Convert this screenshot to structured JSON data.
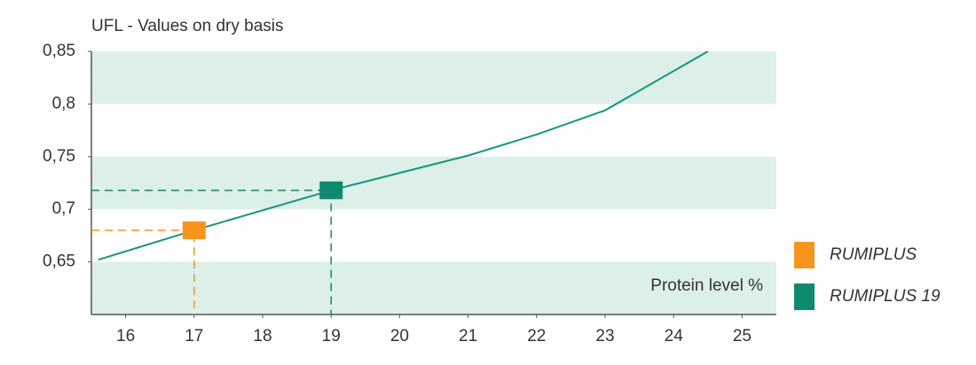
{
  "chart_data": {
    "type": "line",
    "title": "UFL - Values on dry basis",
    "annotation": "Protein level %",
    "x": [
      15.6,
      17,
      19,
      21,
      22,
      23,
      24.5
    ],
    "values": [
      0.652,
      0.68,
      0.718,
      0.751,
      0.771,
      0.794,
      0.85
    ],
    "color": "#17977b",
    "series": [
      {
        "name": "RUMIPLUS",
        "color": "#f7941d",
        "x": [
          17
        ],
        "values": [
          0.68
        ]
      },
      {
        "name": "RUMIPLUS 19",
        "color": "#0f8a6e",
        "x": [
          19
        ],
        "values": [
          0.718
        ]
      }
    ],
    "xlim": [
      15.5,
      25.5
    ],
    "xticks": [
      16,
      17,
      18,
      19,
      20,
      21,
      22,
      23,
      24,
      25
    ],
    "ylim": [
      0.6,
      0.85
    ],
    "yticks": [
      {
        "value": 0.65,
        "label": "0,65"
      },
      {
        "value": 0.7,
        "label": "0,7"
      },
      {
        "value": 0.75,
        "label": "0,75"
      },
      {
        "value": 0.8,
        "label": "0,8"
      },
      {
        "value": 0.85,
        "label": "0,85"
      }
    ],
    "bands": true
  }
}
